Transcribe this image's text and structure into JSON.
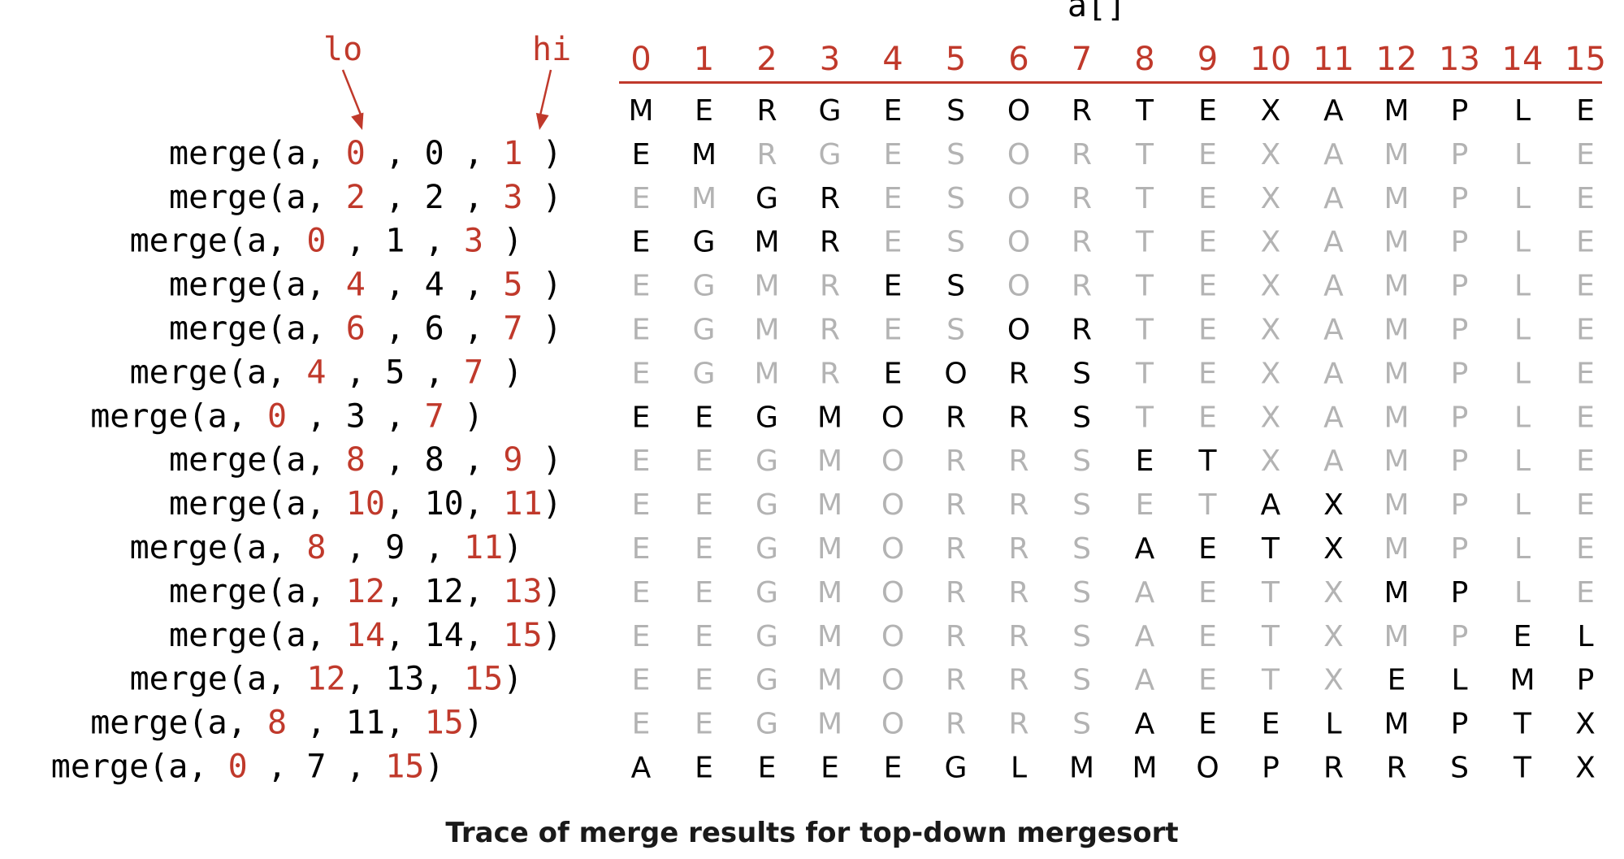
{
  "array_name": "a[]",
  "lo_label": "lo",
  "hi_label": "hi",
  "indices": [
    "0",
    "1",
    "2",
    "3",
    "4",
    "5",
    "6",
    "7",
    "8",
    "9",
    "10",
    "11",
    "12",
    "13",
    "14",
    "15"
  ],
  "initial": [
    "M",
    "E",
    "R",
    "G",
    "E",
    "S",
    "O",
    "R",
    "T",
    "E",
    "X",
    "A",
    "M",
    "P",
    "L",
    "E"
  ],
  "calls": [
    {
      "indent": 3,
      "lo": "0",
      "mid": "0",
      "hi": "1"
    },
    {
      "indent": 3,
      "lo": "2",
      "mid": "2",
      "hi": "3"
    },
    {
      "indent": 2,
      "lo": "0",
      "mid": "1",
      "hi": "3"
    },
    {
      "indent": 3,
      "lo": "4",
      "mid": "4",
      "hi": "5"
    },
    {
      "indent": 3,
      "lo": "6",
      "mid": "6",
      "hi": "7"
    },
    {
      "indent": 2,
      "lo": "4",
      "mid": "5",
      "hi": "7"
    },
    {
      "indent": 1,
      "lo": "0",
      "mid": "3",
      "hi": "7"
    },
    {
      "indent": 3,
      "lo": "8",
      "mid": "8",
      "hi": "9"
    },
    {
      "indent": 3,
      "lo": "10",
      "mid": "10",
      "hi": "11"
    },
    {
      "indent": 2,
      "lo": "8",
      "mid": "9",
      "hi": "11"
    },
    {
      "indent": 3,
      "lo": "12",
      "mid": "12",
      "hi": "13"
    },
    {
      "indent": 3,
      "lo": "14",
      "mid": "14",
      "hi": "15"
    },
    {
      "indent": 2,
      "lo": "12",
      "mid": "13",
      "hi": "15"
    },
    {
      "indent": 1,
      "lo": "8",
      "mid": "11",
      "hi": "15"
    },
    {
      "indent": 0,
      "lo": "0",
      "mid": "7",
      "hi": "15"
    }
  ],
  "rows": [
    "EMRGESORTEXAMPLE",
    "EMGRESORTEXAMPLE",
    "EGMRESORTEXAMPLE",
    "EGMRESORTEXAMPLE",
    "EGMRESORTEXAMPLE",
    "EGMREORSTEXAMPLE",
    "EEGMORRSTEXAMPLE",
    "EEGMORRSETXAMPLE",
    "EEGMORRSETAXMPLE",
    "EEGMORRSAETXMPLE",
    "EEGMORRSAETXMPLE",
    "EEGMORRSAETXMPEL",
    "EEGMORRSAETXELMP",
    "EEGMORRSAEELMPTX",
    "AEEEEGLMMOPRRSTX"
  ],
  "caption": "Trace of merge results for top-down mergesort",
  "colors": {
    "red": "#c0392b",
    "black": "#000000",
    "gray": "#b3b3b3"
  }
}
